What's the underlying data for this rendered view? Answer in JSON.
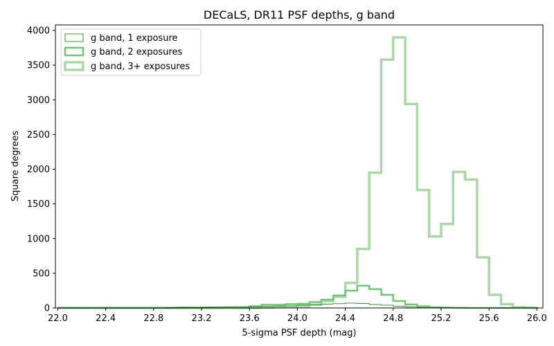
{
  "chart_data": {
    "type": "histogram",
    "title": "DECaLS, DR11 PSF depths, g band",
    "xlabel": "5-sigma PSF depth (mag)",
    "ylabel": "Square degrees",
    "xlim": [
      21.98,
      26.05
    ],
    "ylim": [
      0,
      4080
    ],
    "xticks": [
      22.0,
      22.4,
      22.8,
      23.2,
      23.6,
      24.0,
      24.4,
      24.8,
      25.2,
      25.6,
      26.0
    ],
    "xtick_labels": [
      "22.0",
      "22.4",
      "22.8",
      "23.2",
      "23.6",
      "24.0",
      "24.4",
      "24.8",
      "25.2",
      "25.6",
      "26.0"
    ],
    "yticks": [
      0,
      500,
      1000,
      1500,
      2000,
      2500,
      3000,
      3500,
      4000
    ],
    "ytick_labels": [
      "0",
      "500",
      "1000",
      "1500",
      "2000",
      "2500",
      "3000",
      "3500",
      "4000"
    ],
    "bin_start": 22.0,
    "bin_width": 0.1,
    "grid": false,
    "legend_position": "top-left",
    "series": [
      {
        "name": "g band, 1 exposure",
        "color": "#2ca02c",
        "linewidth": 1,
        "values": [
          0,
          0,
          0,
          0,
          0,
          0,
          0,
          0,
          0,
          5,
          8,
          5,
          10,
          12,
          15,
          15,
          20,
          22,
          28,
          30,
          40,
          48,
          55,
          62,
          70,
          65,
          50,
          40,
          25,
          15,
          8,
          5,
          2,
          0,
          0,
          0,
          0,
          0,
          0,
          0
        ]
      },
      {
        "name": "g band, 2 exposures",
        "color": "#74c476",
        "linewidth": 2.5,
        "values": [
          0,
          0,
          0,
          0,
          0,
          0,
          0,
          0,
          0,
          0,
          5,
          5,
          8,
          8,
          10,
          10,
          25,
          45,
          45,
          55,
          60,
          85,
          120,
          180,
          250,
          320,
          270,
          190,
          100,
          50,
          25,
          10,
          5,
          2,
          0,
          0,
          0,
          0,
          0,
          0
        ]
      },
      {
        "name": "g band, 3+ exposures",
        "color": "#a9d8a6",
        "linewidth": 3.5,
        "values": [
          0,
          0,
          0,
          0,
          0,
          0,
          0,
          0,
          0,
          0,
          0,
          0,
          0,
          0,
          0,
          0,
          0,
          5,
          10,
          15,
          25,
          45,
          100,
          160,
          360,
          850,
          1950,
          3580,
          3900,
          2940,
          1700,
          1030,
          1210,
          1960,
          1850,
          730,
          190,
          55,
          10,
          2
        ]
      }
    ]
  }
}
